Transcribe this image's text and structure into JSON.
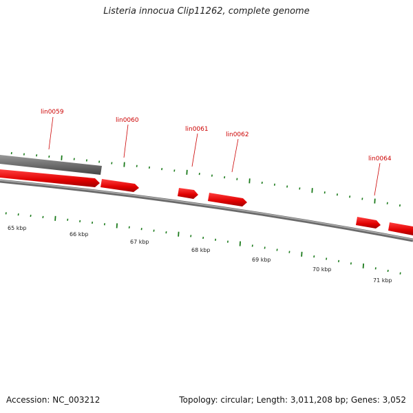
{
  "title": "Listeria innocua Clip11262, complete genome",
  "accession": "Accession: NC_003212",
  "topology": "Topology: circular; Length: 3,011,208 bp; Genes: 3,052",
  "colors": {
    "gene": "#ee1111",
    "gene_dark": "#aa0000",
    "backbone": "#8a8a8a",
    "tick": "#1a7a1a",
    "label": "#cc0000",
    "other_feature": "#777777"
  },
  "gene_labels": [
    "lin0059",
    "lin0060",
    "lin0061",
    "lin0062",
    "lin0064"
  ],
  "kbp_labels": [
    "65 kbp",
    "66 kbp",
    "67 kbp",
    "68 kbp",
    "69 kbp",
    "70 kbp",
    "71 kbp"
  ]
}
